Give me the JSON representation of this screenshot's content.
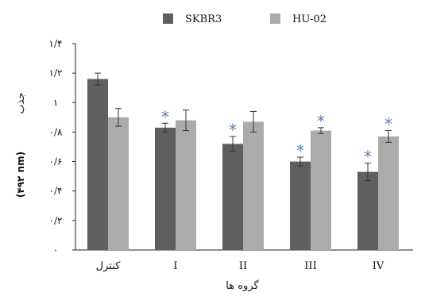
{
  "chart_data": {
    "type": "bar",
    "categories": [
      "کنترل",
      "I",
      "II",
      "III",
      "IV"
    ],
    "series": [
      {
        "name": "SKBR3",
        "color": "#5f5f5f",
        "values": [
          1.16,
          0.83,
          0.72,
          0.6,
          0.53
        ],
        "errors": [
          0.04,
          0.03,
          0.05,
          0.03,
          0.06
        ],
        "significant": [
          false,
          true,
          true,
          true,
          true
        ]
      },
      {
        "name": "HU-02",
        "color": "#ababab",
        "values": [
          0.9,
          0.88,
          0.87,
          0.81,
          0.77
        ],
        "errors": [
          0.06,
          0.07,
          0.07,
          0.02,
          0.04
        ],
        "significant": [
          false,
          false,
          false,
          true,
          true
        ]
      }
    ],
    "ylim": [
      0,
      1.4
    ],
    "yticks": [
      "۰",
      "۰/۲",
      "۰/۴",
      "۰/۶",
      "۰/۸",
      "۱",
      "۱/۲",
      "۱/۴"
    ],
    "ylabel": "جذب",
    "ylabel_unit": "(۴۹۲ nm)",
    "xlabel": "گروه ها",
    "significance_marker": "*",
    "star_color": "#5b7fae",
    "legend_position": "top"
  }
}
